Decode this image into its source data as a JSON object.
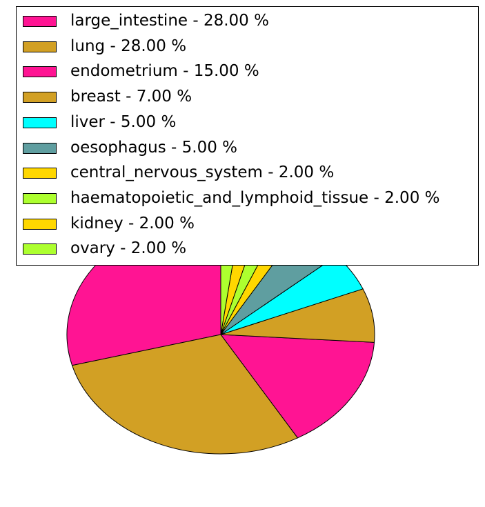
{
  "chart_data": {
    "type": "pie",
    "title": "",
    "start_angle": 90,
    "direction": "counterclockwise",
    "legend_placement": "top",
    "slices": [
      {
        "label": "large_intestine",
        "value": 28.0,
        "legend": "large_intestine - 28.00 %",
        "color": "#ff1493"
      },
      {
        "label": "lung",
        "value": 28.0,
        "legend": "lung - 28.00 %",
        "color": "#d2a024"
      },
      {
        "label": "endometrium",
        "value": 15.0,
        "legend": "endometrium - 15.00 %",
        "color": "#ff1493"
      },
      {
        "label": "breast",
        "value": 7.0,
        "legend": "breast - 7.00 %",
        "color": "#d2a024"
      },
      {
        "label": "liver",
        "value": 5.0,
        "legend": "liver - 5.00 %",
        "color": "#00ffff"
      },
      {
        "label": "oesophagus",
        "value": 5.0,
        "legend": "oesophagus - 5.00 %",
        "color": "#5f9ea0"
      },
      {
        "label": "central_nervous_system",
        "value": 2.0,
        "legend": "central_nervous_system - 2.00 %",
        "color": "#ffd700"
      },
      {
        "label": "haematopoietic_and_lymphoid_tissue",
        "value": 2.0,
        "legend": "haematopoietic_and_lymphoid_tissue - 2.00 %",
        "color": "#adff2f"
      },
      {
        "label": "kidney",
        "value": 2.0,
        "legend": "kidney - 2.00 %",
        "color": "#ffd700"
      },
      {
        "label": "ovary",
        "value": 2.0,
        "legend": "ovary - 2.00 %",
        "color": "#adff2f"
      }
    ]
  }
}
